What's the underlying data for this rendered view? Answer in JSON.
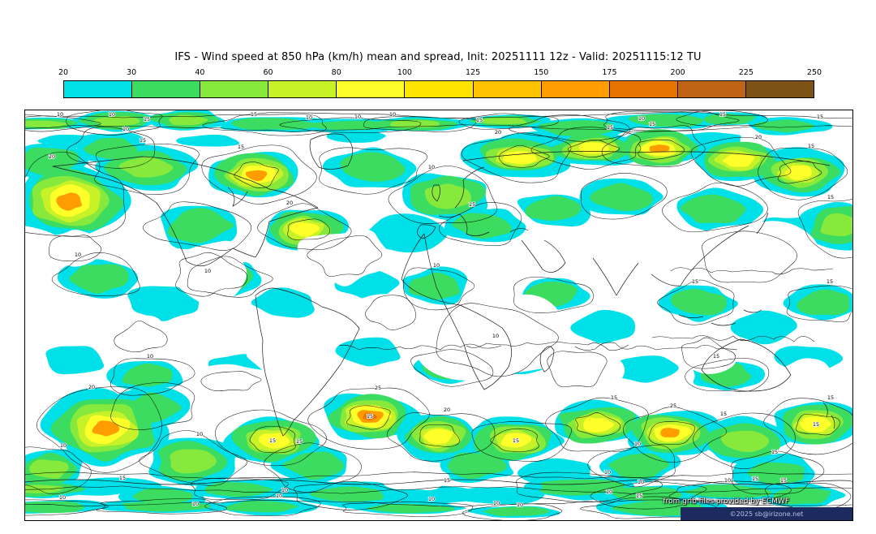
{
  "title": "IFS - Wind speed at 850 hPa (km/h) mean and spread, Init: 20251111 12z - Valid: 20251115:12 TU",
  "colorbar": {
    "tick_labels": [
      "20",
      "30",
      "40",
      "60",
      "80",
      "100",
      "125",
      "150",
      "175",
      "200",
      "225",
      "250"
    ],
    "colors": [
      "#00E0E8",
      "#3BDC5F",
      "#86E93C",
      "#C8F228",
      "#FFFF2A",
      "#FFE400",
      "#FFC300",
      "#FF9D00",
      "#E87400",
      "#BE6414",
      "#7D5217"
    ]
  },
  "map": {
    "attribution_line1": "from grib files provided by ECMWF",
    "attribution_line2": "©2025 sb@irizone.net",
    "contour_label_values": [
      "10",
      "15",
      "20",
      "25"
    ],
    "footer_bar_color": "#1C2A60",
    "coastline_color": "#1A1A1A",
    "contour_color": "#000000",
    "background_color": "#FFFFFF"
  },
  "chart_data": {
    "type": "heatmap",
    "title": "IFS - Wind speed at 850 hPa (km/h) mean and spread",
    "init": "20251111 12z",
    "valid": "20251115:12 TU",
    "units": "km/h",
    "colorbar_ticks": [
      20,
      30,
      40,
      60,
      80,
      100,
      125,
      150,
      175,
      200,
      225,
      250
    ],
    "spread_contour_levels": [
      10,
      15,
      20,
      25
    ],
    "legend_position": "top"
  }
}
